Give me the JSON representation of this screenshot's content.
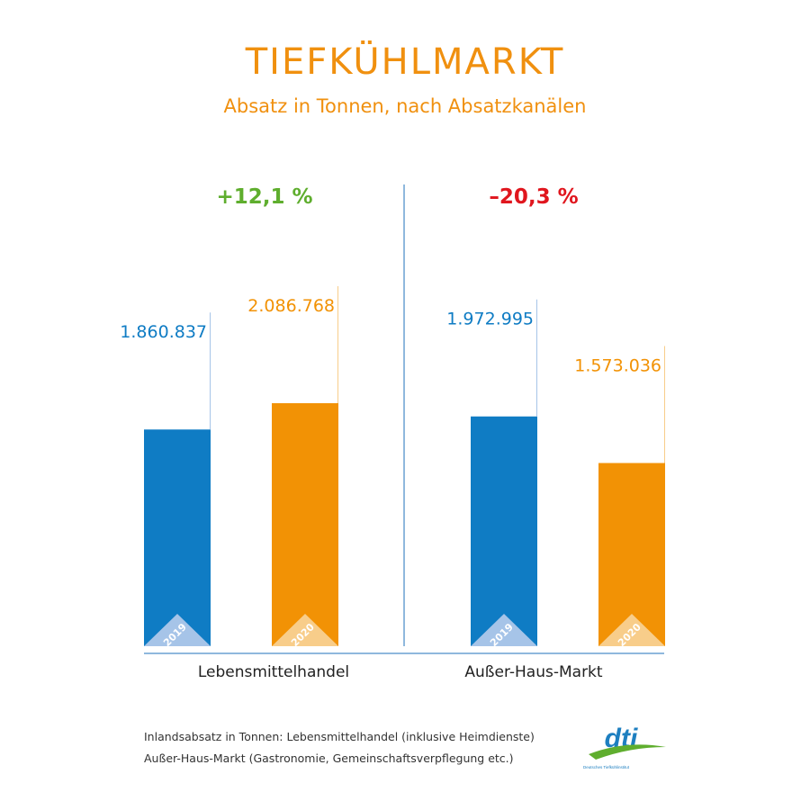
{
  "header": {
    "title": "TIEFKÜHLMARKT",
    "subtitle": "Absatz in Tonnen, nach Absatzkanälen"
  },
  "colors": {
    "blue": "#0f7cc4",
    "orange": "#f29205",
    "green": "#5fae2e",
    "red": "#e0161e",
    "title": "#f0900f"
  },
  "chart_data": {
    "type": "bar",
    "categories": [
      "Lebensmittelhandel",
      "Außer-Haus-Markt"
    ],
    "series": [
      {
        "name": "2019",
        "values": [
          1860837,
          1972995
        ],
        "labels": [
          "1.860.837",
          "1.972.995"
        ]
      },
      {
        "name": "2020",
        "values": [
          2086768,
          1573036
        ],
        "labels": [
          "2.086.768",
          "1.573.036"
        ]
      }
    ],
    "changes": [
      "+12,1 %",
      "–20,3 %"
    ],
    "legend": "year-label-in-bar"
  },
  "footnotes": [
    "Inlandsabsatz in Tonnen: Lebensmittelhandel (inklusive Heimdienste)",
    "Außer-Haus-Markt (Gastronomie, Gemeinschaftsverpflegung etc.)"
  ],
  "logo": {
    "icon": "dti-logo-icon",
    "text": "dti",
    "subtext": "Deutsches Tiefkühlinstitut"
  }
}
